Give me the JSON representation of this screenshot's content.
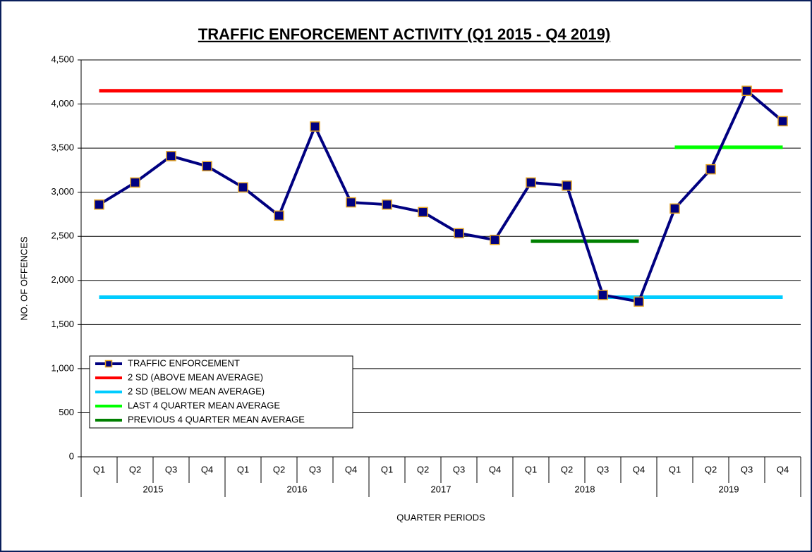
{
  "chart_data": {
    "type": "line",
    "title": "TRAFFIC ENFORCEMENT ACTIVITY (Q1 2015 - Q4 2019)",
    "xlabel": "QUARTER PERIODS",
    "ylabel": "NO. OF OFFENCES",
    "categories": [
      "Q1",
      "Q2",
      "Q3",
      "Q4",
      "Q1",
      "Q2",
      "Q3",
      "Q4",
      "Q1",
      "Q2",
      "Q3",
      "Q4",
      "Q1",
      "Q2",
      "Q3",
      "Q4",
      "Q1",
      "Q2",
      "Q3",
      "Q4"
    ],
    "years": [
      "2015",
      "2016",
      "2017",
      "2018",
      "2019"
    ],
    "ylim": [
      0,
      4500
    ],
    "yticks": [
      0,
      500,
      {
        "value": 1000,
        "label": "1,000"
      },
      {
        "value": 1500,
        "label": "1,500"
      },
      {
        "value": 2000,
        "label": "2,000"
      },
      {
        "value": 2500,
        "label": "2,500"
      },
      {
        "value": 3000,
        "label": "3,000"
      },
      {
        "value": 3500,
        "label": "3,500"
      },
      {
        "value": 4000,
        "label": "4,000"
      },
      {
        "value": 4500,
        "label": "4,500"
      }
    ],
    "grid": true,
    "legend": "lower left",
    "series": [
      {
        "name": "TRAFFIC ENFORCEMENT",
        "color": "#000080",
        "marker": "square",
        "marker_edge": "#e0a020",
        "values": [
          2860,
          3110,
          3410,
          3295,
          3055,
          2735,
          3745,
          2885,
          2860,
          2775,
          2535,
          2460,
          3110,
          3075,
          1835,
          1760,
          2815,
          3260,
          4150,
          3805
        ]
      },
      {
        "name": "2 SD (ABOVE MEAN AVERAGE)",
        "color": "#ff0000",
        "values": [
          4150,
          4150,
          4150,
          4150,
          4150,
          4150,
          4150,
          4150,
          4150,
          4150,
          4150,
          4150,
          4150,
          4150,
          4150,
          4150,
          4150,
          4150,
          4150,
          4150
        ]
      },
      {
        "name": "2 SD (BELOW MEAN AVERAGE)",
        "color": "#00ccff",
        "values": [
          1810,
          1810,
          1810,
          1810,
          1810,
          1810,
          1810,
          1810,
          1810,
          1810,
          1810,
          1810,
          1810,
          1810,
          1810,
          1810,
          1810,
          1810,
          1810,
          1810
        ]
      },
      {
        "name": "LAST 4 QUARTER MEAN AVERAGE",
        "color": "#00ff00",
        "values": [
          null,
          null,
          null,
          null,
          null,
          null,
          null,
          null,
          null,
          null,
          null,
          null,
          null,
          null,
          null,
          null,
          3510,
          3510,
          3510,
          3510
        ]
      },
      {
        "name": "PREVIOUS 4 QUARTER MEAN AVERAGE",
        "color": "#008000",
        "values": [
          null,
          null,
          null,
          null,
          null,
          null,
          null,
          null,
          null,
          null,
          null,
          null,
          2445,
          2445,
          2445,
          2445,
          null,
          null,
          null,
          null
        ]
      }
    ]
  }
}
